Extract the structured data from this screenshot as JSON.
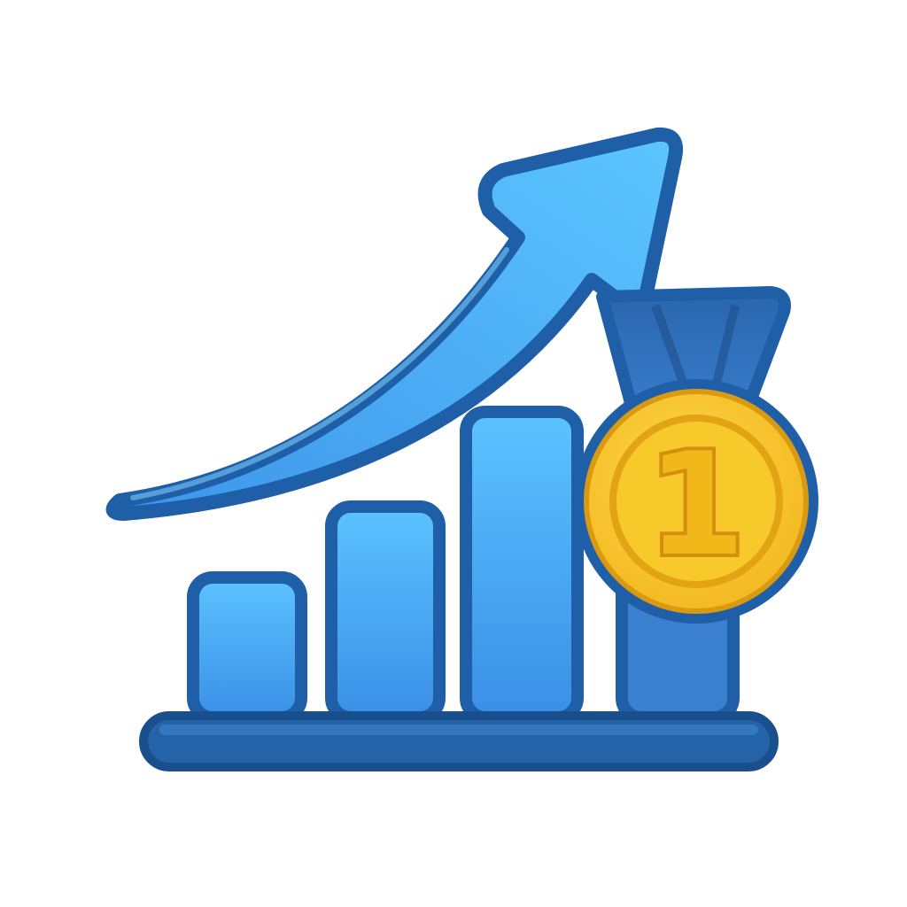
{
  "icon": {
    "name": "growth-chart-with-first-place-medal",
    "bar_heights_relative": [
      0.38,
      0.56,
      0.79,
      0.79
    ],
    "medal": {
      "rank_text": "1"
    },
    "colors": {
      "background": "#ffffff",
      "outline": "#1f5fa8",
      "bar_fill": "#3d9df0",
      "bar_highlight": "#5cc3ff",
      "arrow_fill": "#47a8f2",
      "base_fill": "#2563a8",
      "ribbon_fill": "#2f6fb8",
      "ribbon_dark": "#1e4f8c",
      "medal_gold": "#f6c21c",
      "medal_gold_dark": "#e2a414",
      "medal_inner": "#f7c92a",
      "medal_digit": "#f2b81a"
    }
  }
}
